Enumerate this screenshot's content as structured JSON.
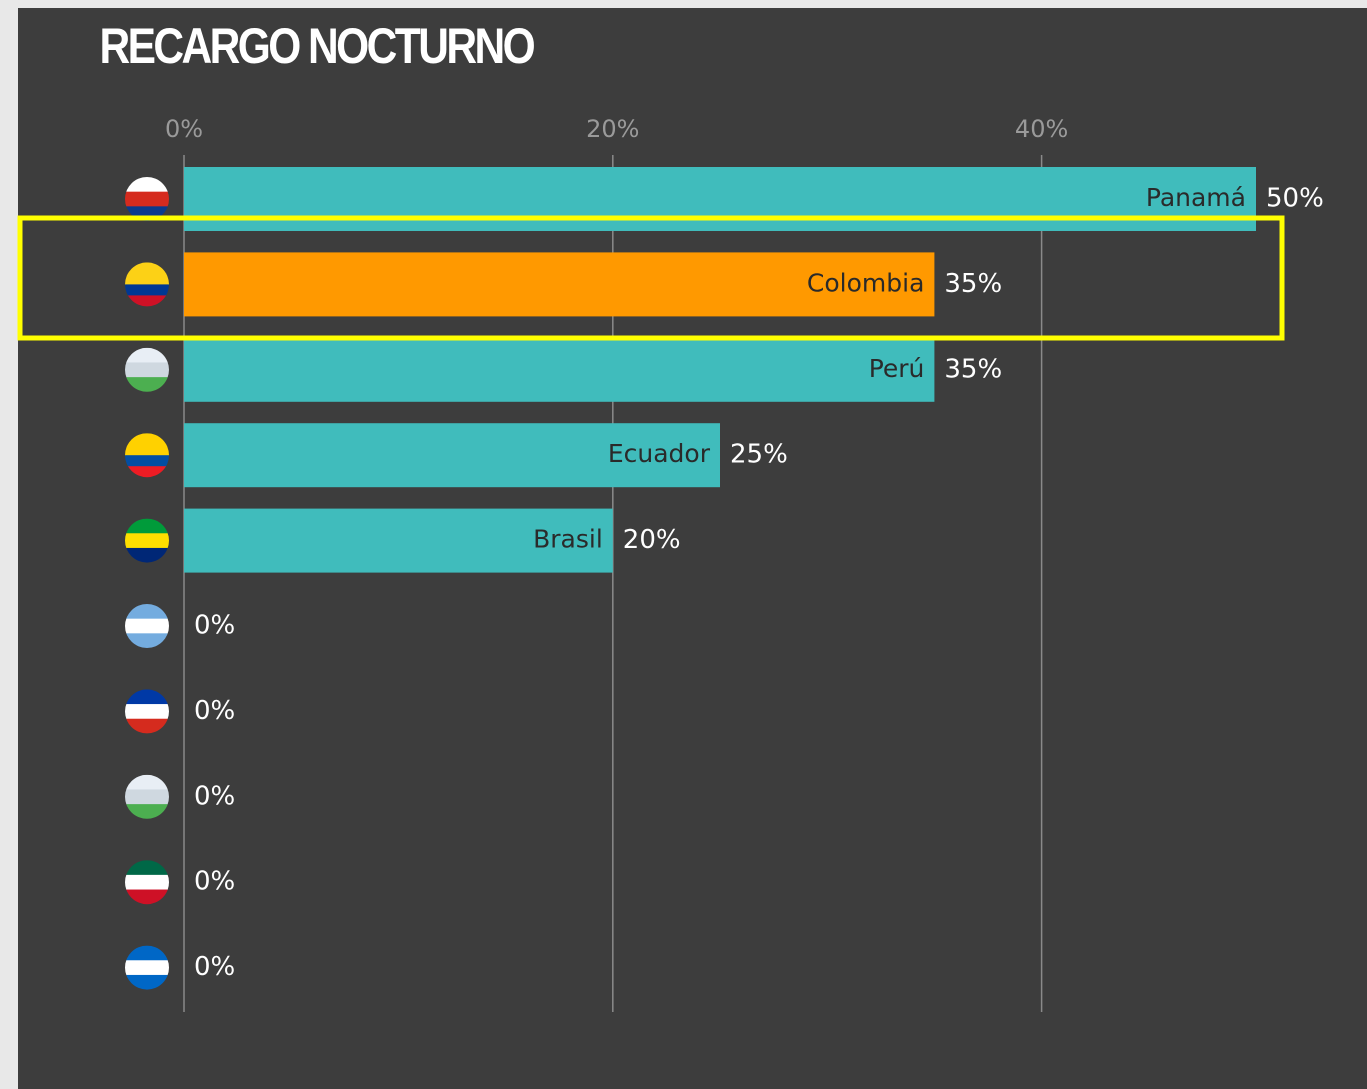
{
  "chart_data": {
    "type": "barh",
    "title": "RECARGO NOCTURNO",
    "categories": [
      "Panamá",
      "Colombia",
      "Perú",
      "Ecuador",
      "Brasil",
      null,
      null,
      null,
      null,
      null
    ],
    "values": [
      50,
      35,
      35,
      25,
      20,
      0,
      0,
      0,
      0,
      0
    ],
    "value_labels": [
      "50%",
      "35%",
      "35%",
      "25%",
      "20%",
      "0%",
      "0%",
      "0%",
      "0%",
      "0%"
    ],
    "colors": [
      "#40bcbc",
      "#ff9900",
      "#40bcbc",
      "#40bcbc",
      "#40bcbc",
      "#40bcbc",
      "#40bcbc",
      "#40bcbc",
      "#40bcbc",
      "#40bcbc"
    ],
    "xlim": [
      0,
      50
    ],
    "xticks": [
      {
        "value": 0,
        "label": "0%"
      },
      {
        "value": 20,
        "label": "20%"
      },
      {
        "value": 40,
        "label": "40%"
      }
    ],
    "grid": true
  }
}
